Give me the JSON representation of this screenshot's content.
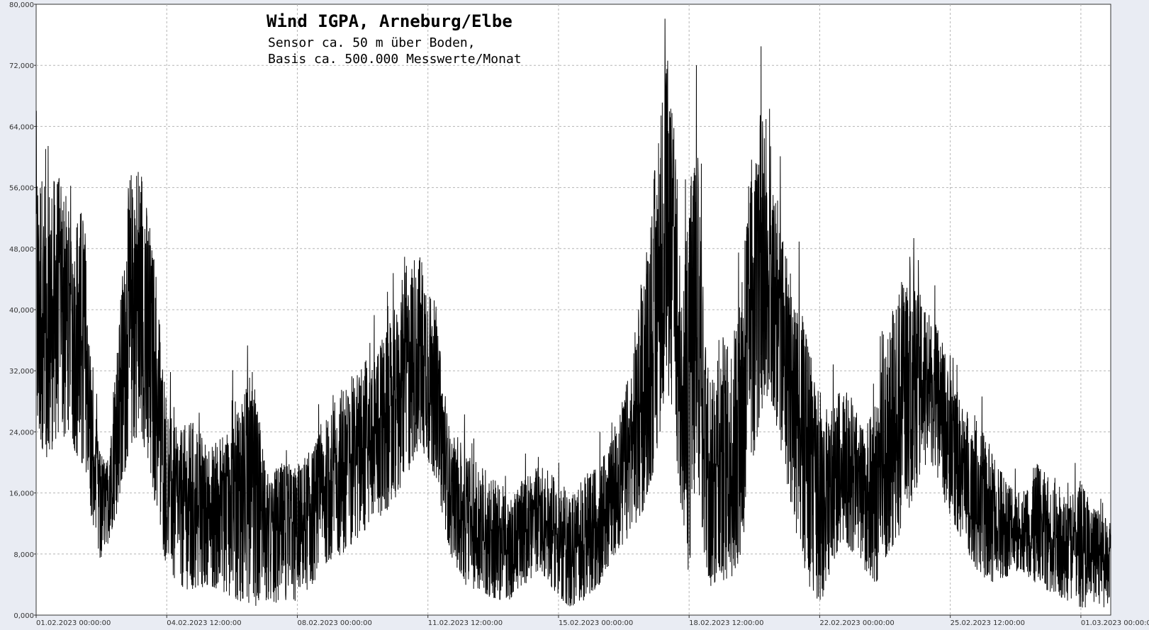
{
  "chart_data": {
    "type": "line",
    "title": "Wind  IGPA, Arneburg/Elbe",
    "subtitle_lines": [
      "Sensor ca. 50 m über Boden,",
      "Basis ca. 500.000 Messwerte/Monat"
    ],
    "xlabel": "",
    "ylabel": "",
    "ylim": [
      0,
      80
    ],
    "y_ticks": [
      "0,000",
      "8,000",
      "16,000",
      "24,000",
      "32,000",
      "40,000",
      "48,000",
      "56,000",
      "64,000",
      "72,000",
      "80,000"
    ],
    "x_range_days": [
      0,
      28.8
    ],
    "x_ticks": [
      {
        "day": 0,
        "label": "01.02.2023  00:00:00"
      },
      {
        "day": 3.5,
        "label": "04.02.2023  12:00:00"
      },
      {
        "day": 7,
        "label": "08.02.2023  00:00:00"
      },
      {
        "day": 10.5,
        "label": "11.02.2023  12:00:00"
      },
      {
        "day": 14,
        "label": "15.02.2023  00:00:00"
      },
      {
        "day": 17.5,
        "label": "18.02.2023  12:00:00"
      },
      {
        "day": 21,
        "label": "22.02.2023  00:00:00"
      },
      {
        "day": 24.5,
        "label": "25.02.2023  12:00:00"
      },
      {
        "day": 28,
        "label": "01.03.2023  00:00:00"
      }
    ],
    "grid": true,
    "series": [
      {
        "color": "#000000",
        "envelope": {
          "x": [
            0,
            0.3,
            0.6,
            1.0,
            1.3,
            1.5,
            1.7,
            1.9,
            2.2,
            2.5,
            2.8,
            3.2,
            3.5,
            3.8,
            4.2,
            4.6,
            5.0,
            5.4,
            5.8,
            6.2,
            6.6,
            7.0,
            7.4,
            7.8,
            8.2,
            8.6,
            9.0,
            9.5,
            9.9,
            10.3,
            10.7,
            11.1,
            11.5,
            11.9,
            12.3,
            12.7,
            13.1,
            13.5,
            13.9,
            14.3,
            14.7,
            15.1,
            15.5,
            15.9,
            16.3,
            16.6,
            16.9,
            17.1,
            17.3,
            17.5,
            17.7,
            17.9,
            18.1,
            18.3,
            18.6,
            18.9,
            19.2,
            19.5,
            19.8,
            20.1,
            20.4,
            20.7,
            21.0,
            21.3,
            21.6,
            21.9,
            22.2,
            22.5,
            22.8,
            23.1,
            23.4,
            23.7,
            24.0,
            24.4,
            24.8,
            25.2,
            25.6,
            26.0,
            26.4,
            26.8,
            27.2,
            27.6,
            28.0,
            28.4,
            28.8
          ],
          "lo": [
            24,
            20,
            24,
            22,
            18,
            12,
            7,
            9,
            14,
            22,
            24,
            14,
            6,
            4,
            3,
            4,
            3,
            2,
            1,
            2,
            1,
            2,
            4,
            7,
            8,
            10,
            12,
            14,
            18,
            22,
            18,
            8,
            4,
            3,
            2,
            2,
            4,
            6,
            3,
            1,
            2,
            4,
            8,
            10,
            14,
            20,
            30,
            25,
            12,
            5,
            20,
            8,
            3,
            5,
            4,
            8,
            20,
            28,
            26,
            18,
            10,
            4,
            1,
            6,
            10,
            8,
            6,
            4,
            8,
            10,
            14,
            18,
            20,
            14,
            10,
            6,
            4,
            5,
            6,
            4,
            3,
            2,
            1,
            1,
            1
          ],
          "hi": [
            60,
            56,
            58,
            52,
            54,
            30,
            22,
            20,
            38,
            58,
            60,
            46,
            28,
            24,
            26,
            22,
            24,
            28,
            32,
            18,
            20,
            20,
            22,
            26,
            30,
            32,
            35,
            38,
            46,
            48,
            40,
            24,
            22,
            20,
            18,
            16,
            18,
            20,
            18,
            16,
            18,
            20,
            24,
            32,
            46,
            60,
            74,
            64,
            42,
            56,
            64,
            42,
            30,
            40,
            34,
            46,
            62,
            68,
            58,
            48,
            42,
            36,
            26,
            28,
            30,
            28,
            24,
            28,
            36,
            44,
            46,
            42,
            40,
            34,
            28,
            26,
            22,
            18,
            16,
            20,
            18,
            16,
            18,
            14,
            12
          ]
        }
      }
    ]
  }
}
